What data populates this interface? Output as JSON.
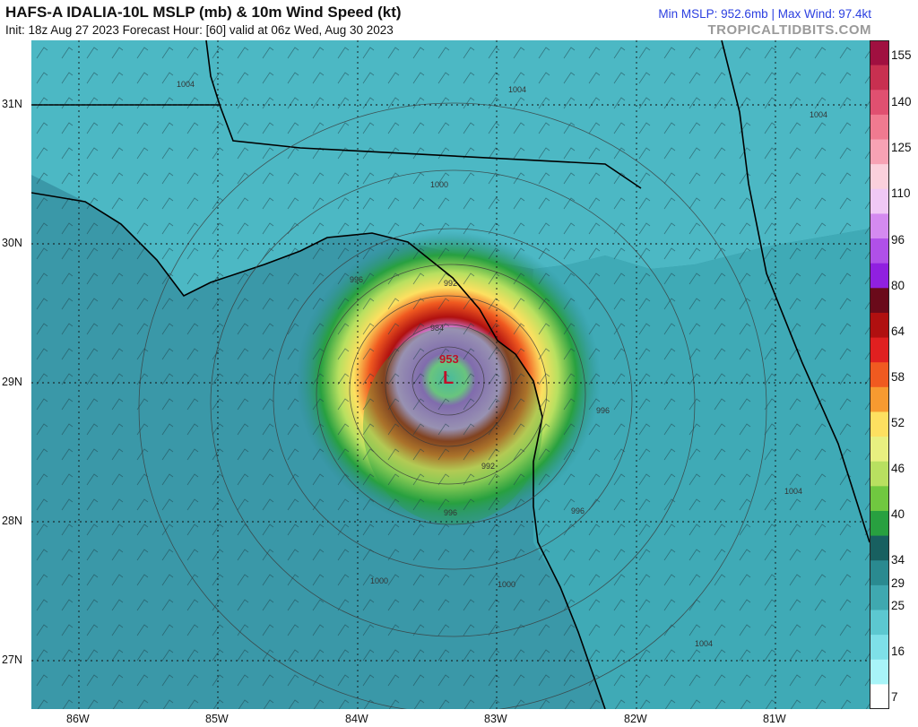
{
  "header": {
    "title": "HAFS-A IDALIA-10L MSLP (mb) & 10m Wind Speed (kt)",
    "subtitle": "Init: 18z Aug 27 2023   Forecast Hour: [60]   valid at 06z Wed, Aug 30 2023",
    "stats": "Min MSLP: 952.6mb | Max Wind: 97.4kt",
    "brand": "TROPICALTIDBITS.COM"
  },
  "map": {
    "center_marker": "L",
    "center_pressure": "953",
    "isobar_labels": [
      "1004",
      "1004",
      "1000",
      "996",
      "992",
      "984",
      "992",
      "996",
      "996",
      "996",
      "1000",
      "1000",
      "1004",
      "1004",
      "1004"
    ],
    "lat_labels": [
      "31N",
      "30N",
      "29N",
      "28N",
      "27N"
    ],
    "lon_labels": [
      "86W",
      "85W",
      "84W",
      "83W",
      "82W",
      "81W"
    ]
  },
  "colorbar": {
    "labels": [
      "155",
      "140",
      "125",
      "110",
      "96",
      "80",
      "64",
      "58",
      "52",
      "46",
      "40",
      "34",
      "29",
      "25",
      "16",
      "7"
    ],
    "colors": [
      "#a01040",
      "#c83050",
      "#e05070",
      "#f07a90",
      "#f7a2b4",
      "#fbd0dc",
      "#f0c8f5",
      "#d48af0",
      "#b050e8",
      "#9020e0",
      "#6a0a1a",
      "#b01010",
      "#e02020",
      "#f05a20",
      "#f79a30",
      "#fde060",
      "#e8f080",
      "#b8e060",
      "#70c840",
      "#28a040",
      "#186060",
      "#2a8a90",
      "#3fa8b0",
      "#5cc8d0",
      "#7ee0e8",
      "#a8f4f8",
      "#ffffff"
    ]
  }
}
